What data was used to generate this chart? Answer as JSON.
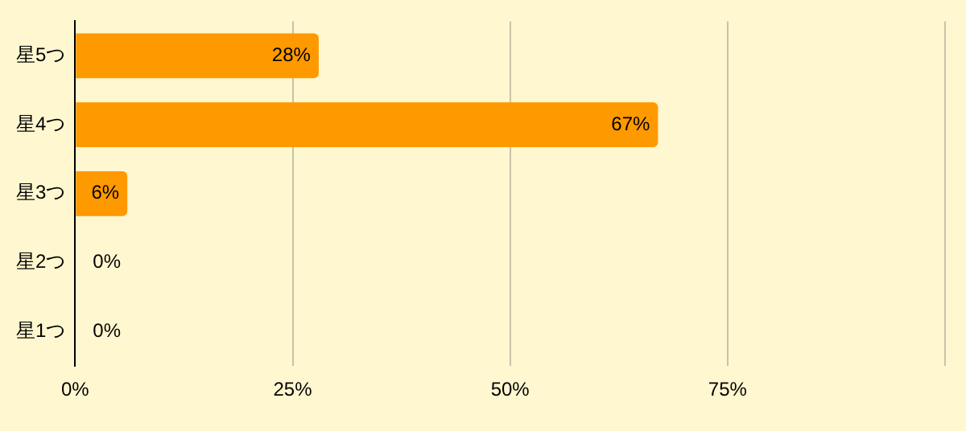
{
  "chart_data": {
    "type": "bar",
    "orientation": "horizontal",
    "categories": [
      "星5つ",
      "星4つ",
      "星3つ",
      "星2つ",
      "星1つ"
    ],
    "values": [
      28,
      67,
      6,
      0,
      0
    ],
    "value_labels": [
      "28%",
      "67%",
      "6%",
      "0%",
      "0%"
    ],
    "color": "#ff9900",
    "xlim": [
      0,
      100
    ],
    "xticks": [
      {
        "value": 0,
        "label": "0%"
      },
      {
        "value": 25,
        "label": "25%"
      },
      {
        "value": 50,
        "label": "50%"
      },
      {
        "value": 75,
        "label": "75%"
      },
      {
        "value": 100,
        "label": null
      }
    ],
    "grid": "x"
  }
}
